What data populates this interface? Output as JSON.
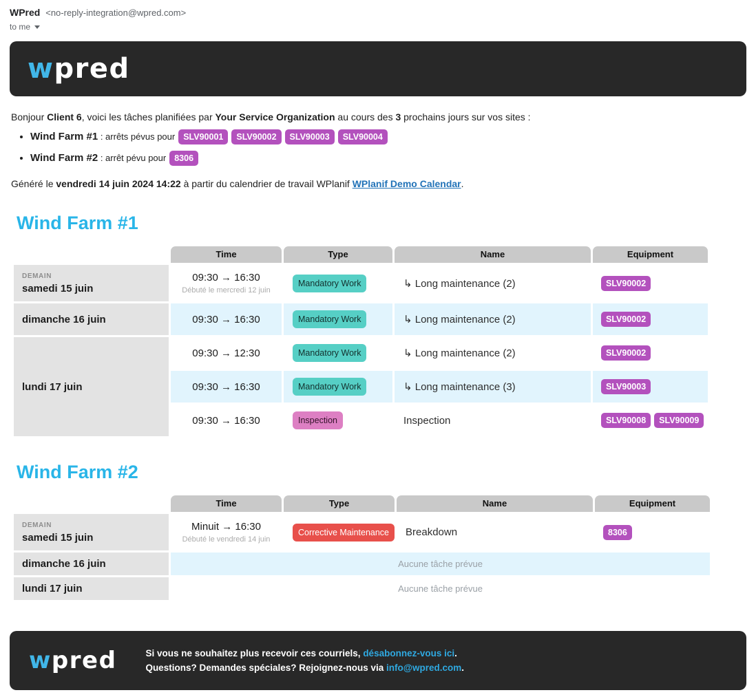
{
  "colors": {
    "accent_heading_blue": "#29b5e8",
    "logo_w_blue": "#41b6e8",
    "calendar_link_blue": "#2273b8",
    "footer_link_blue": "#2fa9e1",
    "badge_purple": "#b351bd",
    "badge_teal": "#56cfc5",
    "badge_pink": "#dd7fc3",
    "badge_red": "#e8504b",
    "banner_dark": "#282828",
    "row_highlight_blue": "#e1f4fd",
    "header_cell_gray": "#c9c9c9",
    "date_cell_gray": "#e3e3e3"
  },
  "email_meta": {
    "sender_name": "WPred",
    "sender_address": "<no-reply-integration@wpred.com>",
    "recipient_label": "to me"
  },
  "logo": {
    "first_letter": "w",
    "rest": "pred"
  },
  "intro": {
    "prefix": "Bonjour ",
    "client": "Client 6",
    "mid1": ", voici les tâches planifiées par ",
    "org": "Your Service Organization",
    "mid2": " au cours des ",
    "days": "3",
    "suffix": " prochains jours sur vos sites :"
  },
  "summary": {
    "items": [
      {
        "site": "Wind Farm #1",
        "text": " : arrêts pévus pour",
        "badges": [
          "SLV90001",
          "SLV90002",
          "SLV90003",
          "SLV90004"
        ]
      },
      {
        "site": "Wind Farm #2",
        "text": " : arrêt pévu pour",
        "badges": [
          "8306"
        ]
      }
    ]
  },
  "generated": {
    "prefix": "Généré le ",
    "datetime": "vendredi 14 juin 2024 14:22",
    "mid": " à partir du calendrier de travail WPlanif ",
    "link": "WPlanif Demo Calendar",
    "suffix": "."
  },
  "table": {
    "columns": [
      "Time",
      "Type",
      "Name",
      "Equipment"
    ]
  },
  "sections": [
    {
      "title": "Wind Farm #1",
      "days": [
        {
          "tag": "DEMAIN",
          "label": "samedi 15 juin",
          "tasks": [
            {
              "time": "09:30 → 16:30",
              "note": "Débuté le mercredi 12 juin",
              "type": "Mandatory Work",
              "type_style": "teal",
              "name": "↳ Long maintenance (2)",
              "equipment": [
                "SLV90002"
              ]
            }
          ]
        },
        {
          "label": "dimanche 16 juin",
          "tasks": [
            {
              "time": "09:30 → 16:30",
              "type": "Mandatory Work",
              "type_style": "teal",
              "name": "↳ Long maintenance (2)",
              "equipment": [
                "SLV90002"
              ]
            }
          ]
        },
        {
          "label": "lundi 17 juin",
          "tasks": [
            {
              "time": "09:30 → 12:30",
              "type": "Mandatory Work",
              "type_style": "teal",
              "name": "↳ Long maintenance (2)",
              "equipment": [
                "SLV90002"
              ]
            },
            {
              "time": "09:30 → 16:30",
              "type": "Mandatory Work",
              "type_style": "teal",
              "name": "↳ Long maintenance (3)",
              "equipment": [
                "SLV90003"
              ]
            },
            {
              "time": "09:30 → 16:30",
              "type": "Inspection",
              "type_style": "pink",
              "name": "Inspection",
              "equipment": [
                "SLV90008",
                "SLV90009"
              ]
            }
          ]
        }
      ]
    },
    {
      "title": "Wind Farm #2",
      "days": [
        {
          "tag": "DEMAIN",
          "label": "samedi 15 juin",
          "tasks": [
            {
              "time": "Minuit → 16:30",
              "note": "Débuté le vendredi 14 juin",
              "type": "Corrective Maintenance",
              "type_style": "red",
              "name": "Breakdown",
              "equipment": [
                "8306"
              ]
            }
          ]
        },
        {
          "label": "dimanche 16 juin",
          "tasks": [],
          "empty_text": "Aucune tâche prévue"
        },
        {
          "label": "lundi 17 juin",
          "tasks": [],
          "empty_text": "Aucune tâche prévue"
        }
      ]
    }
  ],
  "footer": {
    "line1_prefix": "Si vous ne souhaitez plus recevoir ces courriels, ",
    "line1_link": "désabonnez-vous ici",
    "line1_suffix": ".",
    "line2_prefix": "Questions? Demandes spéciales? Rejoignez-nous via ",
    "line2_link": "info@wpred.com",
    "line2_suffix": "."
  }
}
